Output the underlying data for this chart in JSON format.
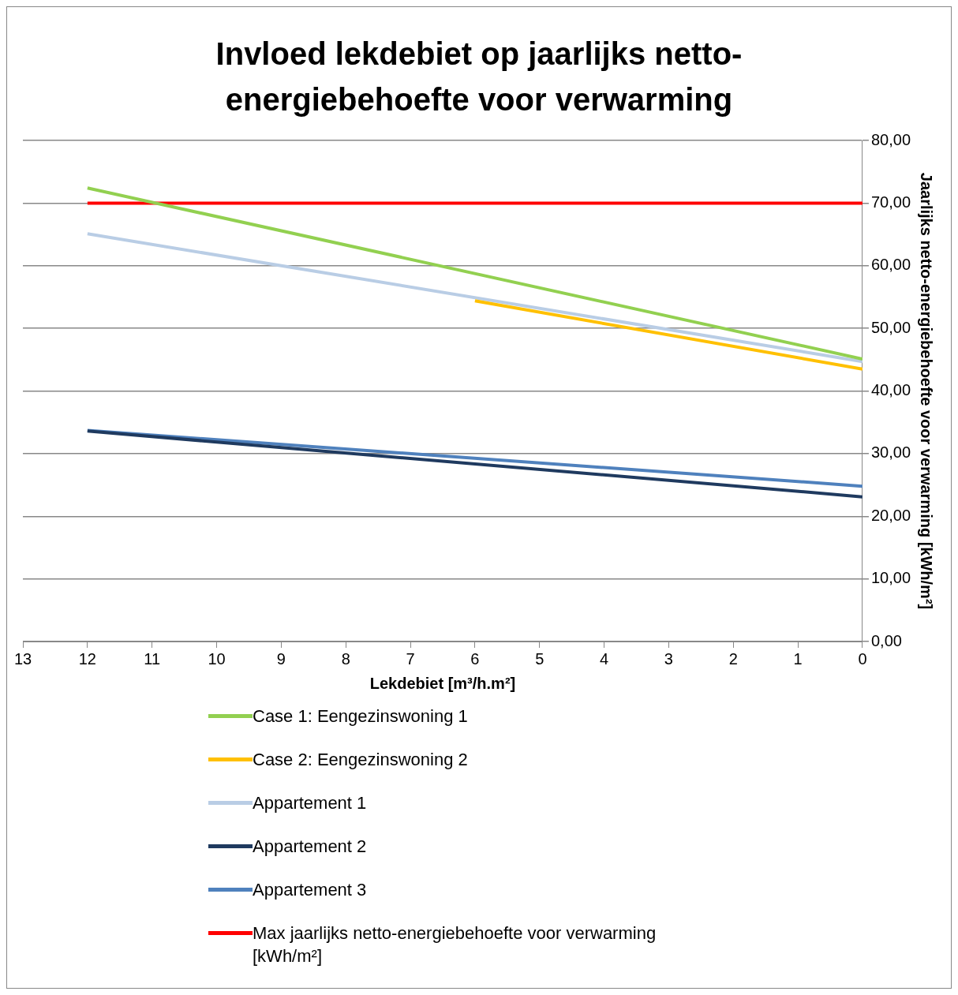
{
  "chart_data": {
    "type": "line",
    "title": "Invloed lekdebiet op jaarlijks netto-energiebehoefte voor verwarming",
    "xlabel": "Lekdebiet [m³/h.m²]",
    "ylabel": "Jaarlijks netto-energiebehoefte voor verwarming [kWh/m²]",
    "xlim": [
      13,
      0
    ],
    "xticks": [
      13,
      12,
      11,
      10,
      9,
      8,
      7,
      6,
      5,
      4,
      3,
      2,
      1,
      0
    ],
    "ylim": [
      0,
      80
    ],
    "yticks": [
      {
        "value": 0,
        "label": "0,00"
      },
      {
        "value": 10,
        "label": "10,00"
      },
      {
        "value": 20,
        "label": "20,00"
      },
      {
        "value": 30,
        "label": "30,00"
      },
      {
        "value": 40,
        "label": "40,00"
      },
      {
        "value": 50,
        "label": "50,00"
      },
      {
        "value": 60,
        "label": "60,00"
      },
      {
        "value": 70,
        "label": "70,00"
      },
      {
        "value": 80,
        "label": "80,00"
      }
    ],
    "grid": "y",
    "legend": "bottom",
    "marker": "none",
    "line_style": "solid",
    "series": [
      {
        "name": "Case 1: Eengezinswoning 1",
        "color": "#92d050",
        "x": [
          12,
          0
        ],
        "values": [
          72.4,
          45.1
        ]
      },
      {
        "name": "Case 2: Eengezinswoning 2",
        "color": "#ffc000",
        "x": [
          6,
          0
        ],
        "values": [
          54.4,
          43.5
        ]
      },
      {
        "name": "Appartement 1",
        "color": "#b9cde5",
        "x": [
          12,
          0
        ],
        "values": [
          65.1,
          44.7
        ]
      },
      {
        "name": "Appartement 2",
        "color": "#1f3a5f",
        "x": [
          12,
          0
        ],
        "values": [
          33.6,
          23.1
        ]
      },
      {
        "name": "Appartement 3",
        "color": "#4f81bd",
        "x": [
          12,
          0
        ],
        "values": [
          33.7,
          24.8
        ]
      },
      {
        "name": "Max jaarlijks netto-energiebehoefte voor verwarming [kWh/m²]",
        "color": "#ff0000",
        "x": [
          12,
          0
        ],
        "values": [
          70,
          70
        ]
      }
    ]
  }
}
